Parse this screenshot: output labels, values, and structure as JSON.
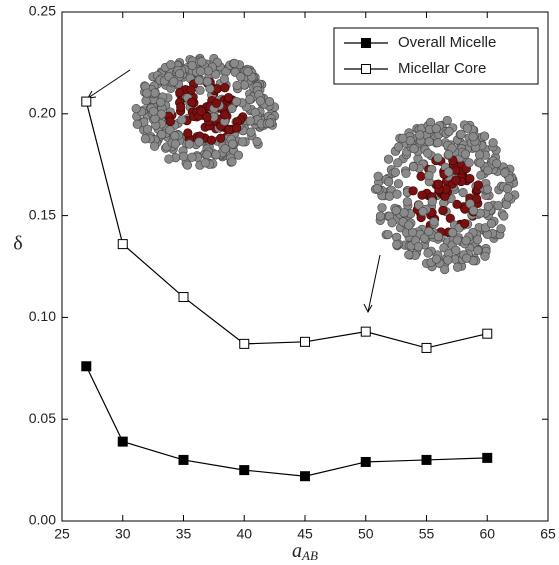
{
  "chart_data": {
    "type": "line",
    "x_label": {
      "text": "a",
      "subscript": "AB"
    },
    "y_label": "δ",
    "x": [
      27,
      30,
      35,
      40,
      45,
      50,
      55,
      60
    ],
    "series": [
      {
        "name": "Overall Micelle",
        "color": "#000000",
        "marker": "filled-square",
        "values": [
          0.076,
          0.039,
          0.03,
          0.025,
          0.022,
          0.029,
          0.03,
          0.031
        ]
      },
      {
        "name": "Micellar Core",
        "color": "#000000",
        "marker": "open-square",
        "values": [
          0.206,
          0.136,
          0.11,
          0.087,
          0.088,
          0.093,
          0.085,
          0.092
        ]
      }
    ],
    "xlim": [
      25,
      65
    ],
    "xticks": [
      25,
      30,
      35,
      40,
      45,
      50,
      55,
      60,
      65
    ],
    "ylim": [
      0,
      0.25
    ],
    "yticks": [
      {
        "value": 0,
        "label": "0.00"
      },
      0.05,
      {
        "value": 0.1,
        "label": "0.10"
      },
      0.15,
      {
        "value": 0.2,
        "label": "0.20"
      },
      0.25
    ],
    "legend": "upper right",
    "grid": false
  }
}
